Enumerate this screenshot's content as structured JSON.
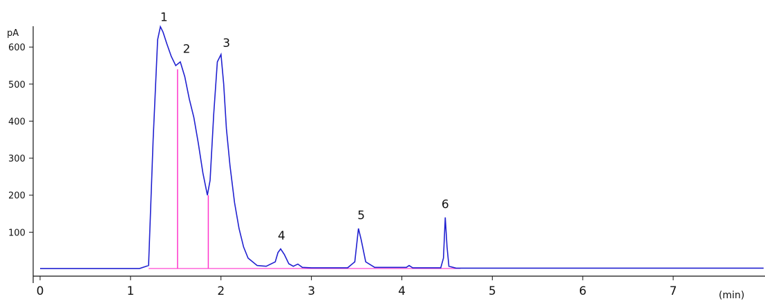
{
  "chart_data": {
    "type": "line",
    "y_unit_label": "pA",
    "x_unit_label": "(min)",
    "xlim": [
      0,
      8
    ],
    "ylim": [
      0,
      660
    ],
    "x_ticks": [
      0,
      1,
      2,
      3,
      4,
      5,
      6,
      7
    ],
    "y_ticks": [
      100,
      200,
      300,
      400,
      500,
      600
    ],
    "trace_color": "#2020d0",
    "baseline_marker_color": "#ff33cc",
    "series": [
      {
        "x": [
          0.0,
          1.1,
          1.2,
          1.25,
          1.3,
          1.33,
          1.36,
          1.4,
          1.45,
          1.5,
          1.55,
          1.6,
          1.65,
          1.7,
          1.75,
          1.8,
          1.85,
          1.88,
          1.92,
          1.96,
          2.0,
          2.03,
          2.06,
          2.1,
          2.15,
          2.2,
          2.25,
          2.3,
          2.4,
          2.5,
          2.6,
          2.63,
          2.66,
          2.7,
          2.75,
          2.8,
          2.85,
          2.9,
          3.0,
          3.4,
          3.48,
          3.52,
          3.55,
          3.6,
          3.7,
          4.05,
          4.08,
          4.12,
          4.43,
          4.46,
          4.48,
          4.5,
          4.52,
          4.6,
          8.0
        ],
        "y": [
          2,
          2,
          10,
          350,
          620,
          655,
          640,
          610,
          575,
          550,
          560,
          520,
          460,
          410,
          340,
          260,
          200,
          240,
          420,
          560,
          580,
          500,
          380,
          280,
          180,
          110,
          60,
          30,
          10,
          8,
          20,
          45,
          55,
          40,
          15,
          8,
          14,
          5,
          4,
          4,
          20,
          110,
          80,
          20,
          5,
          5,
          10,
          4,
          4,
          30,
          140,
          60,
          8,
          3,
          3
        ]
      }
    ],
    "baseline_markers": [
      {
        "x": 1.52,
        "y": 540
      },
      {
        "x": 1.86,
        "y": 200
      }
    ],
    "peak_labels": [
      {
        "text": "1",
        "x": 1.37,
        "y": 655
      },
      {
        "text": "2",
        "x": 1.62,
        "y": 570
      },
      {
        "text": "3",
        "x": 2.06,
        "y": 585
      },
      {
        "text": "4",
        "x": 2.67,
        "y": 65
      },
      {
        "text": "5",
        "x": 3.55,
        "y": 120
      },
      {
        "text": "6",
        "x": 4.48,
        "y": 150
      }
    ]
  }
}
